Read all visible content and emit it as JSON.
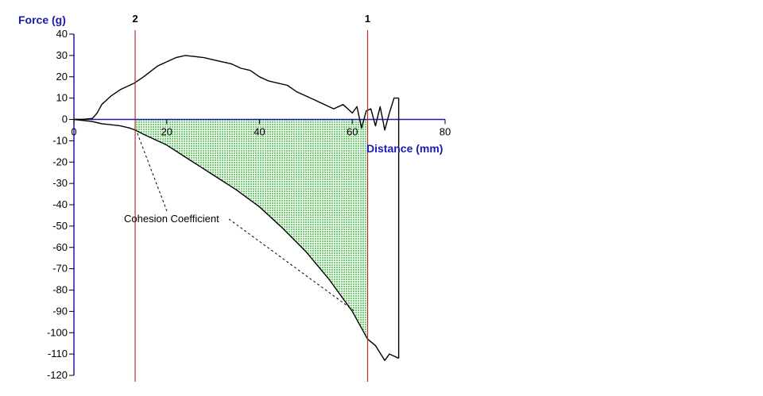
{
  "chart_data": {
    "type": "line",
    "ylabel": "Force (g)",
    "xlabel": "Distance (mm)",
    "xlim": [
      0,
      80
    ],
    "ylim": [
      -120,
      40
    ],
    "x_ticks": [
      0,
      20,
      40,
      60,
      80
    ],
    "y_ticks": [
      40,
      30,
      20,
      10,
      0,
      -10,
      -20,
      -30,
      -40,
      -50,
      -60,
      -70,
      -80,
      -90,
      -100,
      -110,
      -120
    ],
    "grid": false,
    "markers": [
      {
        "label": "2",
        "x": 13.2
      },
      {
        "label": "1",
        "x": 63.3
      }
    ],
    "annotation": "Cohesion Coefficient",
    "series": [
      {
        "color": "#000000",
        "x": [
          0,
          2,
          4,
          5,
          6,
          8,
          10,
          12,
          13,
          15,
          18,
          20,
          22,
          24,
          26,
          28,
          30,
          32,
          34,
          36,
          38,
          40,
          42,
          44,
          46,
          48,
          50,
          52,
          54,
          56,
          58,
          60,
          61,
          62,
          63,
          64,
          65,
          66,
          67,
          68,
          69,
          70
        ],
        "y": [
          0,
          0,
          0.5,
          3,
          7,
          11,
          14,
          16,
          17,
          20,
          25,
          27,
          29,
          30,
          29.5,
          29,
          28,
          27,
          26,
          24,
          23,
          20,
          18,
          17,
          16,
          13,
          11,
          9,
          7,
          5,
          7,
          3,
          6,
          -4,
          4,
          5,
          -3,
          6,
          -5,
          3,
          10,
          10
        ]
      },
      {
        "color": "#000000",
        "x": [
          0,
          2,
          4,
          6,
          8,
          10,
          12,
          13.2,
          15,
          20,
          25,
          30,
          35,
          40,
          45,
          50,
          55,
          60,
          63.3,
          65,
          67,
          68,
          69,
          70
        ],
        "y": [
          0,
          -0.5,
          -1,
          -2,
          -2.5,
          -3,
          -4,
          -5,
          -7,
          -12,
          -19,
          -26,
          -33,
          -41,
          -51,
          -62,
          -75,
          -90,
          -103,
          -106,
          -113,
          -110,
          -111,
          -112
        ]
      }
    ],
    "colors": {
      "curve": "#000000",
      "axis": "#1a1ab0",
      "marker_line": "#b03030",
      "fill": "#4cc44c"
    }
  }
}
